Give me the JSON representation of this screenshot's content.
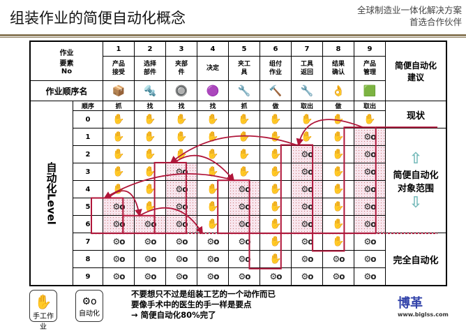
{
  "title": "组装作业的简便自动化概念",
  "tagline": [
    "全球制造业一体化解决方案",
    "首选合作伙伴"
  ],
  "table": {
    "header_label": "作业\n要素\nNo",
    "sequence_name_label": "作业顺序名",
    "order_label": "顺序",
    "level_axis_label": "自动化Level",
    "right_header": "简便自动化\n建议",
    "columns": [
      {
        "no": "1",
        "name": "产品接受",
        "action": "抓",
        "automation_start_level": 5
      },
      {
        "no": "2",
        "name": "选择部件",
        "action": "找",
        "automation_start_level": 6
      },
      {
        "no": "3",
        "name": "夹部件",
        "action": "找",
        "automation_start_level": 3
      },
      {
        "no": "4",
        "name": "决定",
        "action": "找",
        "automation_start_level": 7
      },
      {
        "no": "5",
        "name": "夹工具",
        "action": "抓",
        "automation_start_level": 4
      },
      {
        "no": "6",
        "name": "组付作业",
        "action": "做",
        "automation_start_level": 9
      },
      {
        "no": "7",
        "name": "工具返回",
        "action": "取出",
        "automation_start_level": 2
      },
      {
        "no": "8",
        "name": "结果确认",
        "action": "做",
        "automation_start_level": 8
      },
      {
        "no": "9",
        "name": "产品管理",
        "action": "取出",
        "automation_start_level": 1
      }
    ],
    "levels": [
      "0",
      "1",
      "2",
      "3",
      "4",
      "5",
      "6",
      "7",
      "8",
      "9"
    ],
    "right_labels": {
      "current": "现状",
      "target": "简便自动化\n对象范围",
      "full": "完全自动化"
    },
    "target_max_level": 6
  },
  "legend": {
    "manual": "手工作业",
    "auto": "自动化"
  },
  "notes": [
    "不要想只不过是组装工艺的一个动作而已",
    "要像手术中的医生的手一样是要点",
    "→ 简便自动化80%完了"
  ],
  "logo": {
    "text": "博革",
    "url": "www.biglss.com"
  },
  "colors": {
    "accent": "#b0163a",
    "pink": "#f8e6ee",
    "arrow": "#a8d4d8"
  }
}
